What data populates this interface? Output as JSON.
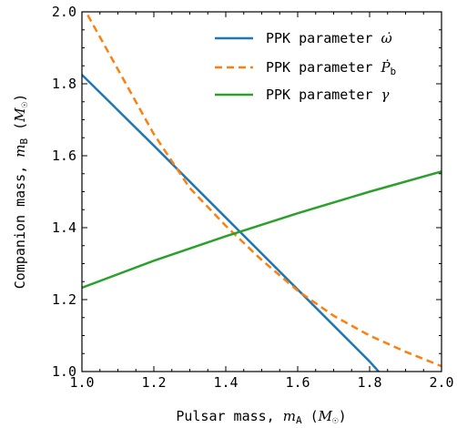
{
  "chart_data": {
    "type": "line",
    "title": "",
    "xlabel": "Pulsar mass, m_A (M_☉)",
    "ylabel": "Companion mass, m_B (M_☉)",
    "xlim": [
      1.0,
      2.0
    ],
    "ylim": [
      1.0,
      2.0
    ],
    "xticks": [
      "1.0",
      "1.2",
      "1.4",
      "1.6",
      "1.8",
      "2.0"
    ],
    "yticks": [
      "1.0",
      "1.2",
      "1.4",
      "1.6",
      "1.8",
      "2.0"
    ],
    "grid": false,
    "legend_position": "top-right",
    "series": [
      {
        "name": "PPK parameter ω̇",
        "color": "#1f77b4",
        "style": "solid",
        "x": [
          1.0,
          1.2,
          1.4,
          1.6,
          1.8,
          1.825
        ],
        "y": [
          1.825,
          1.628,
          1.428,
          1.228,
          1.028,
          1.0
        ]
      },
      {
        "name": "PPK parameter Ṗb",
        "color": "#ff7f0e",
        "style": "dashed",
        "x": [
          1.0,
          1.05,
          1.1,
          1.2,
          1.3,
          1.4,
          1.5,
          1.6,
          1.7,
          1.8,
          1.9,
          2.0
        ],
        "y": [
          2.02,
          1.93,
          1.84,
          1.66,
          1.51,
          1.405,
          1.31,
          1.225,
          1.155,
          1.1,
          1.055,
          1.015
        ]
      },
      {
        "name": "PPK parameter γ",
        "color": "#2ca02c",
        "style": "solid",
        "x": [
          1.0,
          1.2,
          1.4,
          1.6,
          1.8,
          2.0
        ],
        "y": [
          1.233,
          1.308,
          1.376,
          1.44,
          1.5,
          1.556
        ]
      }
    ]
  }
}
